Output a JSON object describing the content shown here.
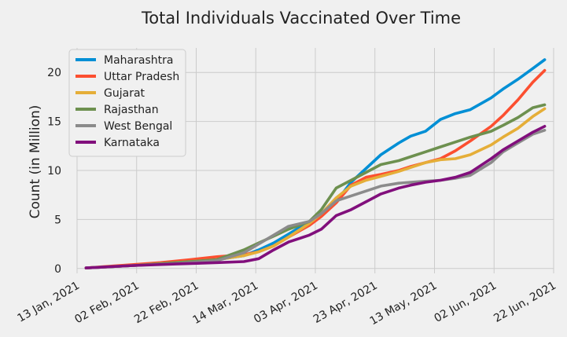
{
  "chart_data": {
    "type": "line",
    "title": "Total Individuals Vaccinated Over Time",
    "xlabel": "",
    "ylabel": "Count (in Million)",
    "x_ticks": [
      "13 Jan, 2021",
      "02 Feb, 2021",
      "22 Feb, 2021",
      "14 Mar, 2021",
      "03 Apr, 2021",
      "23 Apr, 2021",
      "13 May, 2021",
      "02 Jun, 2021",
      "22 Jun, 2021"
    ],
    "y_ticks": [
      0,
      5,
      10,
      15,
      20
    ],
    "xlim": [
      "2021-01-13",
      "2021-06-22"
    ],
    "ylim": [
      -0.5,
      22.5
    ],
    "grid": true,
    "legend_position": "top-left",
    "series": [
      {
        "name": "Maharashtra",
        "color": "#008fd5",
        "x": [
          "2021-01-16",
          "2021-02-01",
          "2021-02-15",
          "2021-03-01",
          "2021-03-10",
          "2021-03-15",
          "2021-03-20",
          "2021-03-25",
          "2021-04-01",
          "2021-04-05",
          "2021-04-10",
          "2021-04-15",
          "2021-04-20",
          "2021-04-25",
          "2021-05-01",
          "2021-05-05",
          "2021-05-10",
          "2021-05-15",
          "2021-05-20",
          "2021-05-25",
          "2021-06-01",
          "2021-06-05",
          "2021-06-10",
          "2021-06-15",
          "2021-06-19"
        ],
        "y": [
          0.05,
          0.3,
          0.6,
          0.9,
          1.3,
          1.9,
          2.6,
          3.5,
          4.8,
          5.5,
          6.8,
          8.8,
          10.2,
          11.6,
          12.8,
          13.5,
          14.0,
          15.2,
          15.8,
          16.2,
          17.4,
          18.3,
          19.3,
          20.4,
          21.3
        ]
      },
      {
        "name": "Uttar Pradesh",
        "color": "#fc4f30",
        "x": [
          "2021-01-16",
          "2021-02-01",
          "2021-02-10",
          "2021-02-20",
          "2021-03-01",
          "2021-03-10",
          "2021-03-15",
          "2021-03-20",
          "2021-03-25",
          "2021-04-01",
          "2021-04-05",
          "2021-04-10",
          "2021-04-15",
          "2021-04-20",
          "2021-04-25",
          "2021-05-01",
          "2021-05-05",
          "2021-05-10",
          "2021-05-15",
          "2021-05-20",
          "2021-05-25",
          "2021-06-01",
          "2021-06-05",
          "2021-06-10",
          "2021-06-15",
          "2021-06-19"
        ],
        "y": [
          0.05,
          0.4,
          0.6,
          0.9,
          1.2,
          1.4,
          1.7,
          2.3,
          3.2,
          4.4,
          5.3,
          6.7,
          8.5,
          9.3,
          9.6,
          10.0,
          10.4,
          10.8,
          11.2,
          12.0,
          13.0,
          14.5,
          15.6,
          17.2,
          19.0,
          20.2
        ]
      },
      {
        "name": "Gujarat",
        "color": "#e5ae38",
        "x": [
          "2021-01-16",
          "2021-02-01",
          "2021-02-15",
          "2021-03-01",
          "2021-03-10",
          "2021-03-15",
          "2021-03-20",
          "2021-03-25",
          "2021-04-01",
          "2021-04-05",
          "2021-04-10",
          "2021-04-15",
          "2021-04-20",
          "2021-04-25",
          "2021-05-01",
          "2021-05-05",
          "2021-05-10",
          "2021-05-15",
          "2021-05-20",
          "2021-05-25",
          "2021-06-01",
          "2021-06-05",
          "2021-06-10",
          "2021-06-15",
          "2021-06-19"
        ],
        "y": [
          0.05,
          0.3,
          0.6,
          0.9,
          1.3,
          1.7,
          2.3,
          3.2,
          4.6,
          5.6,
          7.2,
          8.4,
          9.0,
          9.4,
          9.9,
          10.3,
          10.8,
          11.1,
          11.2,
          11.6,
          12.6,
          13.4,
          14.3,
          15.5,
          16.3
        ]
      },
      {
        "name": "Rajasthan",
        "color": "#6d904f",
        "x": [
          "2021-01-16",
          "2021-02-01",
          "2021-02-15",
          "2021-03-01",
          "2021-03-10",
          "2021-03-15",
          "2021-03-20",
          "2021-03-25",
          "2021-04-01",
          "2021-04-05",
          "2021-04-10",
          "2021-04-15",
          "2021-04-20",
          "2021-04-25",
          "2021-05-01",
          "2021-05-05",
          "2021-05-10",
          "2021-05-15",
          "2021-05-20",
          "2021-05-25",
          "2021-06-01",
          "2021-06-05",
          "2021-06-10",
          "2021-06-15",
          "2021-06-19"
        ],
        "y": [
          0.05,
          0.3,
          0.6,
          0.9,
          1.9,
          2.6,
          3.3,
          4.0,
          4.8,
          6.0,
          8.2,
          9.0,
          9.8,
          10.6,
          11.0,
          11.4,
          11.9,
          12.4,
          12.9,
          13.4,
          14.0,
          14.6,
          15.4,
          16.4,
          16.7
        ]
      },
      {
        "name": "West Bengal",
        "color": "#8b8b8b",
        "x": [
          "2021-01-16",
          "2021-02-01",
          "2021-02-15",
          "2021-03-01",
          "2021-03-10",
          "2021-03-15",
          "2021-03-20",
          "2021-03-25",
          "2021-04-01",
          "2021-04-05",
          "2021-04-10",
          "2021-04-15",
          "2021-04-20",
          "2021-04-25",
          "2021-05-01",
          "2021-05-05",
          "2021-05-10",
          "2021-05-15",
          "2021-05-20",
          "2021-05-25",
          "2021-06-01",
          "2021-06-05",
          "2021-06-10",
          "2021-06-15",
          "2021-06-19"
        ],
        "y": [
          0.05,
          0.3,
          0.5,
          0.8,
          1.6,
          2.5,
          3.4,
          4.3,
          4.8,
          5.6,
          6.9,
          7.4,
          7.9,
          8.4,
          8.7,
          8.8,
          8.9,
          9.0,
          9.2,
          9.5,
          10.8,
          11.9,
          12.8,
          13.7,
          14.1
        ]
      },
      {
        "name": "Karnataka",
        "color": "#810f7c",
        "x": [
          "2021-01-16",
          "2021-02-01",
          "2021-02-15",
          "2021-03-01",
          "2021-03-10",
          "2021-03-15",
          "2021-03-20",
          "2021-03-25",
          "2021-04-01",
          "2021-04-05",
          "2021-04-10",
          "2021-04-15",
          "2021-04-20",
          "2021-04-25",
          "2021-05-01",
          "2021-05-05",
          "2021-05-10",
          "2021-05-15",
          "2021-05-20",
          "2021-05-25",
          "2021-06-01",
          "2021-06-05",
          "2021-06-10",
          "2021-06-15",
          "2021-06-19"
        ],
        "y": [
          0.05,
          0.3,
          0.45,
          0.6,
          0.7,
          1.0,
          1.9,
          2.7,
          3.4,
          4.0,
          5.4,
          6.0,
          6.8,
          7.6,
          8.2,
          8.5,
          8.8,
          9.0,
          9.3,
          9.8,
          11.2,
          12.1,
          13.0,
          13.9,
          14.5
        ]
      }
    ]
  }
}
